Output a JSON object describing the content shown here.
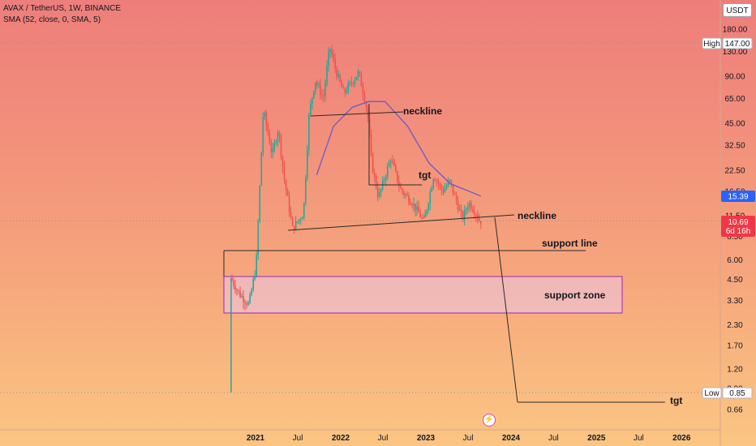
{
  "header": {
    "symbol_line": "AVAX / TetherUS, 1W, BINANCE",
    "indicator_line": "SMA (52, close, 0, SMA, 5)"
  },
  "toolbar": {
    "unit_button": "USDT"
  },
  "colors": {
    "up": "#26a69a",
    "down": "#ef5350",
    "sma": "#6a5acd",
    "blue_badge": "#2962ff",
    "red_badge": "#f23645"
  },
  "chart_data": {
    "type": "candlestick",
    "scale": "log",
    "symbol": "AVAX / TetherUS",
    "timeframe": "1W",
    "y_ticks": [
      "180.00",
      "130.00",
      "90.00",
      "65.00",
      "45.00",
      "32.50",
      "22.50",
      "16.50",
      "11.50",
      "8.50",
      "6.00",
      "4.50",
      "3.30",
      "2.30",
      "1.70",
      "1.20",
      "0.90",
      "0.66"
    ],
    "x_ticks": [
      "2021",
      "Jul",
      "2022",
      "Jul",
      "2023",
      "Jul",
      "2024",
      "Jul",
      "2025",
      "Jul",
      "2026"
    ],
    "badges": {
      "high_label": "High",
      "high_value": "147.00",
      "sma_value": "15.39",
      "last_value": "10.69",
      "last_countdown": "6d 16h",
      "low_label": "Low",
      "low_value": "0.85"
    },
    "annotations": [
      "neckline",
      "tgt",
      "neckline",
      "support line",
      "support zone",
      "tgt"
    ],
    "price_path": [
      {
        "date": "2020-09-22",
        "price": 4.6
      },
      {
        "date": "2020-11-01",
        "price": 3.6
      },
      {
        "date": "2020-12-10",
        "price": 3.1
      },
      {
        "date": "2021-01-10",
        "price": 5.5
      },
      {
        "date": "2021-02-10",
        "price": 55.0
      },
      {
        "date": "2021-03-20",
        "price": 28.0
      },
      {
        "date": "2021-04-15",
        "price": 42.0
      },
      {
        "date": "2021-05-10",
        "price": 20.0
      },
      {
        "date": "2021-06-15",
        "price": 9.5
      },
      {
        "date": "2021-08-01",
        "price": 12.0
      },
      {
        "date": "2021-08-25",
        "price": 52.0
      },
      {
        "date": "2021-09-20",
        "price": 85.0
      },
      {
        "date": "2021-10-25",
        "price": 65.0
      },
      {
        "date": "2021-11-21",
        "price": 140.0
      },
      {
        "date": "2021-12-20",
        "price": 95.0
      },
      {
        "date": "2022-01-20",
        "price": 70.0
      },
      {
        "date": "2022-03-25",
        "price": 95.0
      },
      {
        "date": "2022-05-01",
        "price": 55.0
      },
      {
        "date": "2022-05-20",
        "price": 25.0
      },
      {
        "date": "2022-06-18",
        "price": 15.0
      },
      {
        "date": "2022-08-10",
        "price": 27.0
      },
      {
        "date": "2022-09-20",
        "price": 17.0
      },
      {
        "date": "2022-11-10",
        "price": 14.0
      },
      {
        "date": "2022-12-30",
        "price": 10.5
      },
      {
        "date": "2023-02-10",
        "price": 21.0
      },
      {
        "date": "2023-03-20",
        "price": 16.5
      },
      {
        "date": "2023-04-20",
        "price": 19.0
      },
      {
        "date": "2023-06-12",
        "price": 11.0
      },
      {
        "date": "2023-07-10",
        "price": 14.0
      },
      {
        "date": "2023-08-10",
        "price": 12.0
      },
      {
        "date": "2023-08-25",
        "price": 10.69
      }
    ],
    "sma52": [
      {
        "date": "2021-09-20",
        "price": 21.0
      },
      {
        "date": "2021-12-01",
        "price": 43.0
      },
      {
        "date": "2022-02-20",
        "price": 57.0
      },
      {
        "date": "2022-05-01",
        "price": 62.0
      },
      {
        "date": "2022-07-10",
        "price": 62.0
      },
      {
        "date": "2022-10-15",
        "price": 43.0
      },
      {
        "date": "2023-01-15",
        "price": 25.0
      },
      {
        "date": "2023-04-15",
        "price": 18.5
      },
      {
        "date": "2023-08-25",
        "price": 15.39
      }
    ]
  }
}
